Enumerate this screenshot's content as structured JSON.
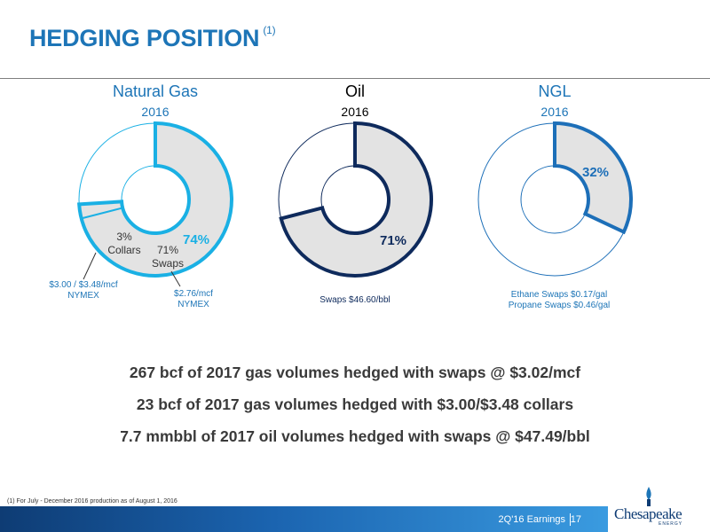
{
  "title": "HEDGING POSITION",
  "title_note": "(1)",
  "columns": [
    {
      "name": "Natural Gas",
      "year": "2016",
      "name_color": "#1d75b7",
      "year_color": "#1d75b7",
      "donut_color": "#1ab0e4",
      "hedged_pct_label": "74%",
      "hedged_fraction": 0.74,
      "segments": [
        {
          "label_pct": "3%",
          "label_name": "Collars",
          "fraction": 0.03
        },
        {
          "label_pct": "71%",
          "label_name": "Swaps",
          "fraction": 0.71
        }
      ],
      "notes": [
        {
          "line1": "$3.00 / $3.48/mcf",
          "line2": "NYMEX"
        },
        {
          "line1": "$2.76/mcf",
          "line2": "NYMEX"
        }
      ]
    },
    {
      "name": "Oil",
      "year": "2016",
      "name_color": "#000000",
      "year_color": "#000000",
      "donut_color": "#0e2a5c",
      "hedged_pct_label": "71%",
      "hedged_fraction": 0.71,
      "note": "Swaps $46.60/bbl"
    },
    {
      "name": "NGL",
      "year": "2016",
      "name_color": "#1d75b7",
      "year_color": "#1d75b7",
      "donut_color": "#1d6fb8",
      "hedged_pct_label": "32%",
      "hedged_fraction": 0.32,
      "note_line1": "Ethane Swaps $0.17/gal",
      "note_line2": "Propane Swaps $0.46/gal"
    }
  ],
  "summary": [
    "267 bcf of 2017 gas volumes hedged with swaps @ $3.02/mcf",
    "23 bcf of 2017 gas volumes hedged with $3.00/$3.48 collars",
    "7.7 mmbbl of 2017 oil volumes hedged with swaps @ $47.49/bbl"
  ],
  "footnote": "(1)   For July - December 2016 production as of August 1, 2016",
  "footer": {
    "label": "2Q'16 Earnings",
    "page": "17"
  },
  "logo": {
    "wordmark": "Chesapeake",
    "sub": "ENERGY"
  },
  "colors": {
    "title": "#1d75b7",
    "fill": "#e3e3e3",
    "footer_dark": "#0e3c74",
    "footer_light": "#3a9be0"
  }
}
